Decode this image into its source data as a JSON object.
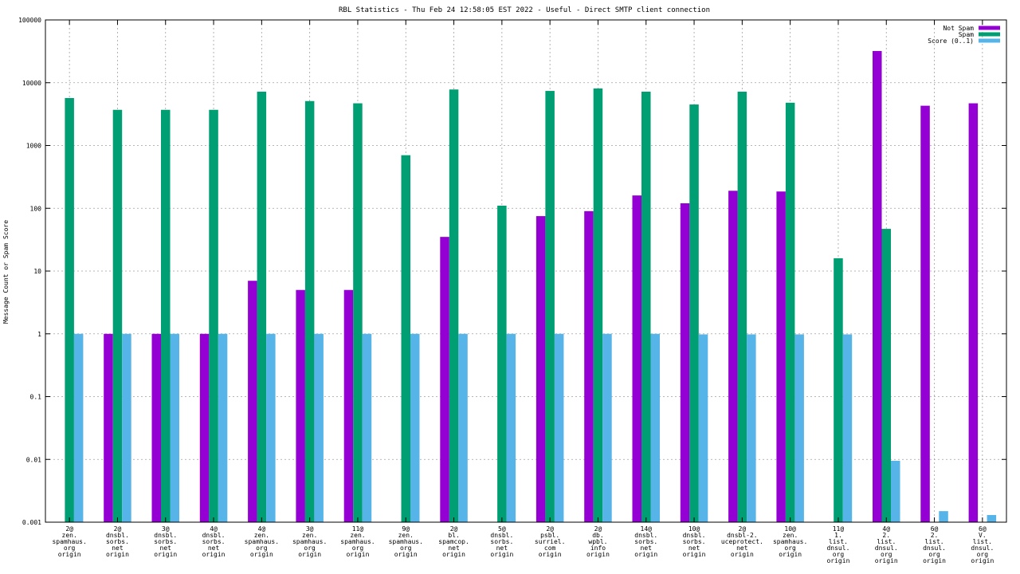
{
  "chart_data": {
    "type": "bar",
    "title": "RBL Statistics - Thu Feb 24 12:58:05 EST 2022 - Useful - Direct SMTP client connection",
    "xlabel": "",
    "ylabel": "Message Count or Spam Score",
    "yscale": "log",
    "ylim": [
      0.001,
      100000
    ],
    "yticks": [
      0.001,
      0.01,
      0.1,
      1,
      10,
      100,
      1000,
      10000,
      100000
    ],
    "ytick_labels": [
      "0.001",
      "0.01",
      "0.1",
      "1",
      "10",
      "100",
      "1000",
      "10000",
      "100000"
    ],
    "grid": true,
    "legend_position": "top-right",
    "categories": [
      [
        "2@",
        "zen.",
        "spamhaus.",
        "org",
        "origin"
      ],
      [
        "2@",
        "dnsbl.",
        "sorbs.",
        "net",
        "origin"
      ],
      [
        "3@",
        "dnsbl.",
        "sorbs.",
        "net",
        "origin"
      ],
      [
        "4@",
        "dnsbl.",
        "sorbs.",
        "net",
        "origin"
      ],
      [
        "4@",
        "zen.",
        "spamhaus.",
        "org",
        "origin"
      ],
      [
        "3@",
        "zen.",
        "spamhaus.",
        "org",
        "origin"
      ],
      [
        "11@",
        "zen.",
        "spamhaus.",
        "org",
        "origin"
      ],
      [
        "9@",
        "zen.",
        "spamhaus.",
        "org",
        "origin"
      ],
      [
        "2@",
        "bl.",
        "spamcop.",
        "net",
        "origin"
      ],
      [
        "5@",
        "dnsbl.",
        "sorbs.",
        "net",
        "origin"
      ],
      [
        "2@",
        "psbl.",
        "surriel.",
        "com",
        "origin"
      ],
      [
        "2@",
        "db.",
        "wpbl.",
        "info",
        "origin"
      ],
      [
        "14@",
        "dnsbl.",
        "sorbs.",
        "net",
        "origin"
      ],
      [
        "10@",
        "dnsbl.",
        "sorbs.",
        "net",
        "origin"
      ],
      [
        "2@",
        "dnsbl-2.",
        "uceprotect.",
        "net",
        "origin"
      ],
      [
        "10@",
        "zen.",
        "spamhaus.",
        "org",
        "origin"
      ],
      [
        "11@",
        "1.",
        "list.",
        "dnsul.",
        "org",
        "origin"
      ],
      [
        "4@",
        "2.",
        "list.",
        "dnsul.",
        "org",
        "origin"
      ],
      [
        "6@",
        "2.",
        "list.",
        "dnsul.",
        "org",
        "origin"
      ],
      [
        "6@",
        "V.",
        "list.",
        "dnsul.",
        "org",
        "origin"
      ]
    ],
    "series": [
      {
        "name": "Not Spam",
        "color": "#9400d3",
        "values": [
          null,
          1,
          1,
          1,
          7,
          5,
          5,
          null,
          35,
          null,
          75,
          90,
          160,
          120,
          190,
          185,
          null,
          32000,
          4300,
          4700
        ]
      },
      {
        "name": "Spam",
        "color": "#009e73",
        "values": [
          5700,
          3700,
          3700,
          3700,
          7200,
          5100,
          4700,
          700,
          7800,
          110,
          7400,
          8100,
          7200,
          4500,
          7200,
          4800,
          16,
          47,
          null,
          null
        ]
      },
      {
        "name": "Score (0..1)",
        "color": "#56b4e9",
        "values": [
          1,
          1,
          1,
          1,
          1,
          1,
          1,
          1,
          1,
          1,
          1,
          1,
          1,
          0.98,
          0.98,
          0.98,
          0.98,
          0.0095,
          0.0015,
          0.0013
        ]
      }
    ]
  }
}
